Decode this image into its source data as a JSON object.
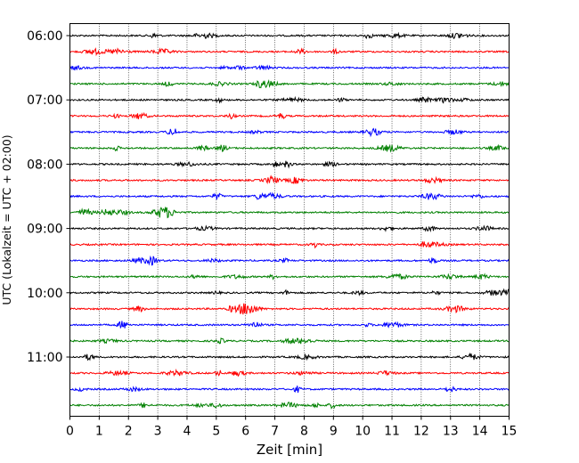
{
  "chart_data": {
    "type": "line",
    "title": "",
    "xlabel": "Zeit  [min]",
    "ylabel": "UTC (Lokalzeit = UTC + 02:00)",
    "xlim": [
      0,
      15
    ],
    "x_ticks": [
      "0",
      "1",
      "2",
      "3",
      "4",
      "5",
      "6",
      "7",
      "8",
      "9",
      "10",
      "11",
      "12",
      "13",
      "14",
      "15"
    ],
    "y_ticks": [
      "06:00",
      "07:00",
      "08:00",
      "09:00",
      "10:00",
      "11:00"
    ],
    "grid": "vertical dotted lines at each minute",
    "trace_colors": [
      "#000000",
      "#ff0000",
      "#0000ff",
      "#008000"
    ],
    "traces": [
      {
        "start": "06:00"
      },
      {
        "start": "06:15"
      },
      {
        "start": "06:30"
      },
      {
        "start": "06:45"
      },
      {
        "start": "07:00"
      },
      {
        "start": "07:15"
      },
      {
        "start": "07:30"
      },
      {
        "start": "07:45"
      },
      {
        "start": "08:00"
      },
      {
        "start": "08:15"
      },
      {
        "start": "08:30"
      },
      {
        "start": "08:45"
      },
      {
        "start": "09:00"
      },
      {
        "start": "09:15"
      },
      {
        "start": "09:30"
      },
      {
        "start": "09:45"
      },
      {
        "start": "10:00"
      },
      {
        "start": "10:15"
      },
      {
        "start": "10:30"
      },
      {
        "start": "10:45"
      },
      {
        "start": "11:00"
      },
      {
        "start": "11:15"
      },
      {
        "start": "11:30"
      },
      {
        "start": "11:45"
      }
    ]
  }
}
